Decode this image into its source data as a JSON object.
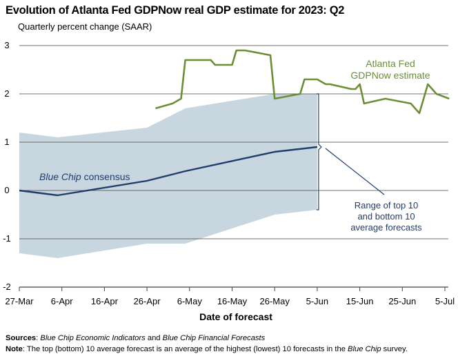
{
  "chart_data": {
    "type": "line",
    "title": "Evolution of Atlanta Fed GDPNow real GDP estimate for 2023: Q2",
    "subtitle": "Quarterly percent change (SAAR)",
    "xlabel": "Date of forecast",
    "ylabel": "",
    "ylim": [
      -2,
      3
    ],
    "yticks": [
      "3",
      "2",
      "1",
      "0",
      "-1",
      "-2"
    ],
    "xticks": [
      "27-Mar",
      "6-Apr",
      "16-Apr",
      "26-Apr",
      "6-May",
      "16-May",
      "26-May",
      "5-Jun",
      "15-Jun",
      "25-Jun",
      "5-Jul"
    ],
    "grid": "horizontal",
    "colors": {
      "gdpnow": "#6a8f35",
      "bluechip": "#1f3d6b",
      "range": "#c8d6df",
      "grid": "#444444"
    },
    "series": [
      {
        "name": "Atlanta Fed GDPNow estimate",
        "label_lines": [
          "Atlanta Fed",
          "GDPNow estimate"
        ],
        "x": [
          "2023-04-28",
          "2023-05-02",
          "2023-05-04",
          "2023-05-05",
          "2023-05-11",
          "2023-05-12",
          "2023-05-16",
          "2023-05-17",
          "2023-05-19",
          "2023-05-25",
          "2023-05-26",
          "2023-06-01",
          "2023-06-02",
          "2023-06-05",
          "2023-06-07",
          "2023-06-08",
          "2023-06-13",
          "2023-06-14",
          "2023-06-15",
          "2023-06-16",
          "2023-06-21",
          "2023-06-27",
          "2023-06-29",
          "2023-07-01",
          "2023-07-03",
          "2023-07-06"
        ],
        "values": [
          1.7,
          1.8,
          1.9,
          2.7,
          2.7,
          2.6,
          2.6,
          2.9,
          2.9,
          2.8,
          1.9,
          2.0,
          2.3,
          2.3,
          2.2,
          2.2,
          2.1,
          2.1,
          2.2,
          1.8,
          1.9,
          1.8,
          1.6,
          2.2,
          2.0,
          1.9
        ]
      },
      {
        "name": "Blue Chip consensus",
        "name_parts": [
          "Blue Chip",
          " consensus"
        ],
        "x": [
          "2023-03-27",
          "2023-04-05",
          "2023-04-26",
          "2023-05-05",
          "2023-05-26",
          "2023-06-05"
        ],
        "values": [
          0.0,
          -0.1,
          0.2,
          0.4,
          0.8,
          0.9
        ]
      }
    ],
    "range_band": {
      "label_lines": [
        "Range of top 10",
        "and bottom 10",
        "average forecasts"
      ],
      "x": [
        "2023-03-27",
        "2023-04-05",
        "2023-04-26",
        "2023-05-05",
        "2023-05-26",
        "2023-06-05"
      ],
      "upper": [
        1.2,
        1.1,
        1.3,
        1.7,
        2.0,
        2.0
      ],
      "lower": [
        -1.3,
        -1.4,
        -1.1,
        -1.1,
        -0.5,
        -0.4
      ]
    }
  },
  "footnotes": {
    "sources_label": "Sources",
    "sources_parts": [
      ": ",
      "Blue Chip Economic Indicators",
      " and ",
      "Blue Chip Financial Forecasts"
    ],
    "note_label": "Note",
    "note_parts": [
      ": The top (bottom) 10 average forecast is an average of the highest (lowest) 10 forecasts in the ",
      "Blue Chip",
      " survey."
    ]
  }
}
